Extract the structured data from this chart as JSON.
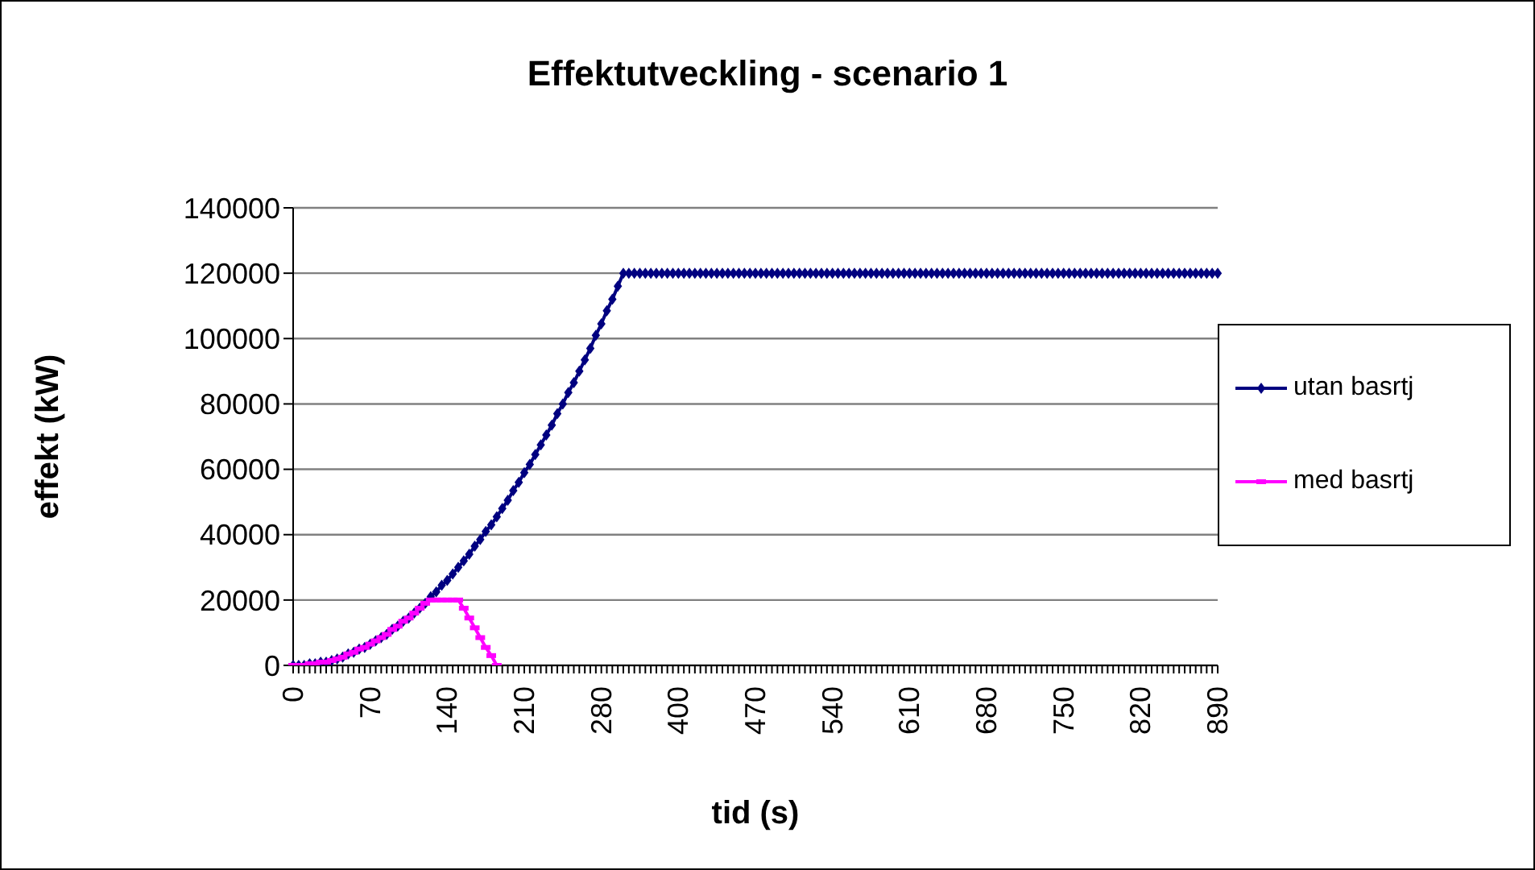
{
  "chart_data": {
    "type": "line",
    "title": "Effektutveckling - scenario 1",
    "xlabel": "tid (s)",
    "ylabel": "effekt (kW)",
    "categories": [
      "0",
      null,
      null,
      null,
      null,
      null,
      null,
      null,
      null,
      null,
      null,
      null,
      null,
      null,
      "70",
      null,
      null,
      null,
      null,
      null,
      null,
      null,
      null,
      null,
      null,
      null,
      null,
      null,
      "140",
      null,
      null,
      null,
      null,
      null,
      null,
      null,
      null,
      null,
      null,
      null,
      null,
      null,
      "210",
      null,
      null,
      null,
      null,
      null,
      null,
      null,
      null,
      null,
      null,
      null,
      null,
      null,
      "280",
      null,
      null,
      null,
      null,
      null,
      null,
      null,
      null,
      null,
      null,
      null,
      null,
      null,
      "400",
      null,
      null,
      null,
      null,
      null,
      null,
      null,
      null,
      null,
      null,
      null,
      null,
      null,
      "470",
      null,
      null,
      null,
      null,
      null,
      null,
      null,
      null,
      null,
      null,
      null,
      null,
      null,
      "540",
      null,
      null,
      null,
      null,
      null,
      null,
      null,
      null,
      null,
      null,
      null,
      null,
      null,
      "610",
      null,
      null,
      null,
      null,
      null,
      null,
      null,
      null,
      null,
      null,
      null,
      null,
      null,
      "680",
      null,
      null,
      null,
      null,
      null,
      null,
      null,
      null,
      null,
      null,
      null,
      null,
      null,
      "750",
      null,
      null,
      null,
      null,
      null,
      null,
      null,
      null,
      null,
      null,
      null,
      null,
      null,
      "820",
      null,
      null,
      null,
      null,
      null,
      null,
      null,
      null,
      null,
      null,
      null,
      null,
      null,
      "890"
    ],
    "series": [
      {
        "name": "utan basrtj",
        "color": "#000080",
        "marker": "diamond",
        "values": [
          0,
          0,
          0,
          500,
          500,
          1000,
          1000,
          1500,
          2000,
          2500,
          3500,
          4000,
          5000,
          5500,
          6500,
          7500,
          8500,
          9500,
          11000,
          12000,
          13500,
          14500,
          16000,
          17500,
          19000,
          21000,
          22500,
          24500,
          26000,
          28000,
          30000,
          32000,
          34000,
          36500,
          38500,
          41000,
          43000,
          45500,
          48000,
          50500,
          53500,
          56000,
          59000,
          61500,
          64500,
          67500,
          70500,
          73500,
          77000,
          80000,
          83500,
          86500,
          90000,
          93500,
          97000,
          101000,
          104500,
          108500,
          112000,
          116000,
          120000,
          120000,
          120000,
          120000,
          120000,
          120000,
          120000,
          120000,
          120000,
          120000,
          120000,
          120000,
          120000,
          120000,
          120000,
          120000,
          120000,
          120000,
          120000,
          120000,
          120000,
          120000,
          120000,
          120000,
          120000,
          120000,
          120000,
          120000,
          120000,
          120000,
          120000,
          120000,
          120000,
          120000,
          120000,
          120000,
          120000,
          120000,
          120000,
          120000,
          120000,
          120000,
          120000,
          120000,
          120000,
          120000,
          120000,
          120000,
          120000,
          120000,
          120000,
          120000,
          120000,
          120000,
          120000,
          120000,
          120000,
          120000,
          120000,
          120000,
          120000,
          120000,
          120000,
          120000,
          120000,
          120000,
          120000,
          120000,
          120000,
          120000,
          120000,
          120000,
          120000,
          120000,
          120000,
          120000,
          120000,
          120000,
          120000,
          120000,
          120000,
          120000,
          120000,
          120000,
          120000,
          120000,
          120000,
          120000,
          120000,
          120000,
          120000,
          120000,
          120000,
          120000,
          120000,
          120000,
          120000,
          120000,
          120000,
          120000,
          120000,
          120000,
          120000,
          120000,
          120000,
          120000,
          120000,
          120000,
          120000
        ]
      },
      {
        "name": "med basrtj",
        "color": "#ff00ff",
        "marker": "square",
        "values": [
          0,
          0,
          0,
          500,
          500,
          1000,
          1000,
          1500,
          2000,
          2500,
          3500,
          4000,
          5000,
          5500,
          6500,
          7500,
          8500,
          9500,
          11000,
          12000,
          13500,
          14500,
          16000,
          17500,
          19000,
          20000,
          20000,
          20000,
          20000,
          20000,
          20000,
          17500,
          14500,
          11500,
          8500,
          5500,
          3000,
          0,
          null,
          null,
          null,
          null,
          null,
          null,
          null,
          null,
          null,
          null,
          null,
          null,
          null,
          null,
          null,
          null,
          null,
          null,
          null,
          null,
          null,
          null,
          null,
          null,
          null,
          null,
          null,
          null,
          null,
          null,
          null,
          null,
          null,
          null,
          null,
          null,
          null,
          null,
          null,
          null,
          null,
          null,
          null,
          null,
          null,
          null,
          null,
          null,
          null,
          null,
          null,
          null,
          null,
          null,
          null,
          null,
          null,
          null,
          null,
          null,
          null,
          null,
          null,
          null,
          null,
          null,
          null,
          null,
          null,
          null,
          null,
          null,
          null,
          null,
          null,
          null,
          null,
          null,
          null,
          null,
          null,
          null,
          null,
          null,
          null,
          null,
          null,
          null,
          null,
          null,
          null,
          null,
          null,
          null,
          null,
          null,
          null,
          null,
          null,
          null,
          null,
          null,
          null,
          null,
          null,
          null,
          null,
          null,
          null,
          null,
          null,
          null,
          null,
          null,
          null,
          null,
          null,
          null,
          null,
          null,
          null,
          null,
          null,
          null,
          null,
          null,
          null,
          null,
          null,
          null,
          null
        ]
      }
    ],
    "ylim": [
      0,
      140000
    ],
    "yticks": [
      0,
      20000,
      40000,
      60000,
      80000,
      100000,
      120000,
      140000
    ],
    "grid": "y",
    "legend": "right"
  }
}
